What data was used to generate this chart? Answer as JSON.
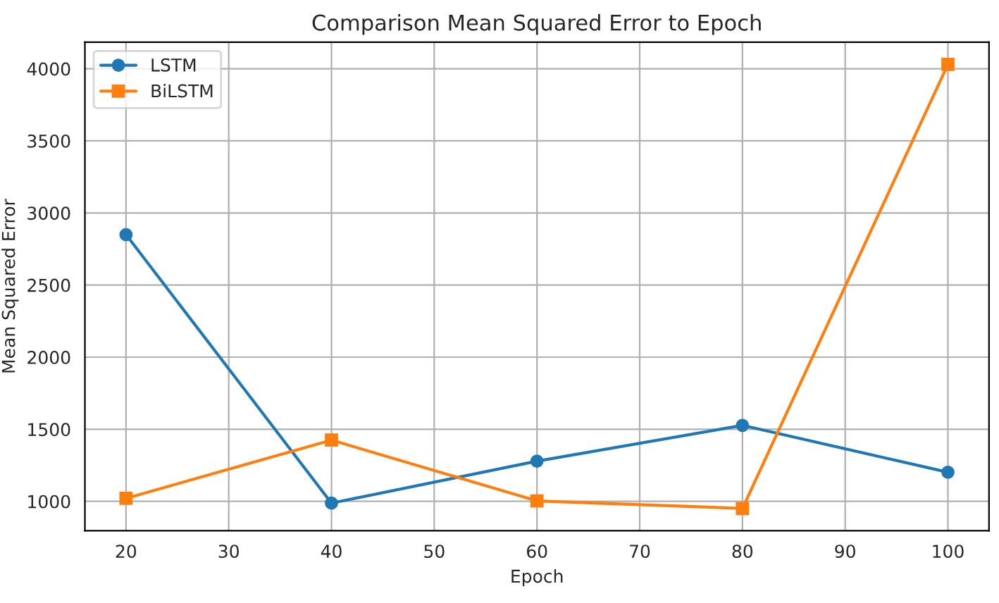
{
  "chart_data": {
    "type": "line",
    "title": "Comparison Mean Squared Error to Epoch",
    "xlabel": "Epoch",
    "ylabel": "Mean Squared Error",
    "x": [
      20,
      40,
      60,
      80,
      100
    ],
    "series": [
      {
        "name": "LSTM",
        "color": "#1f77b4",
        "marker": "circle",
        "values": [
          2850,
          988,
          1279,
          1527,
          1202
        ]
      },
      {
        "name": "BiLSTM",
        "color": "#ff7f0e",
        "marker": "square",
        "values": [
          1021,
          1425,
          1003,
          951,
          4030
        ]
      }
    ],
    "xlim": [
      16,
      104
    ],
    "xticks": [
      20,
      30,
      40,
      50,
      60,
      70,
      80,
      90,
      100
    ],
    "ylim": [
      797,
      4184
    ],
    "yticks": [
      1000,
      1500,
      2000,
      2500,
      3000,
      3500,
      4000
    ],
    "grid": true,
    "legend": "top left",
    "line_style": "solid"
  }
}
